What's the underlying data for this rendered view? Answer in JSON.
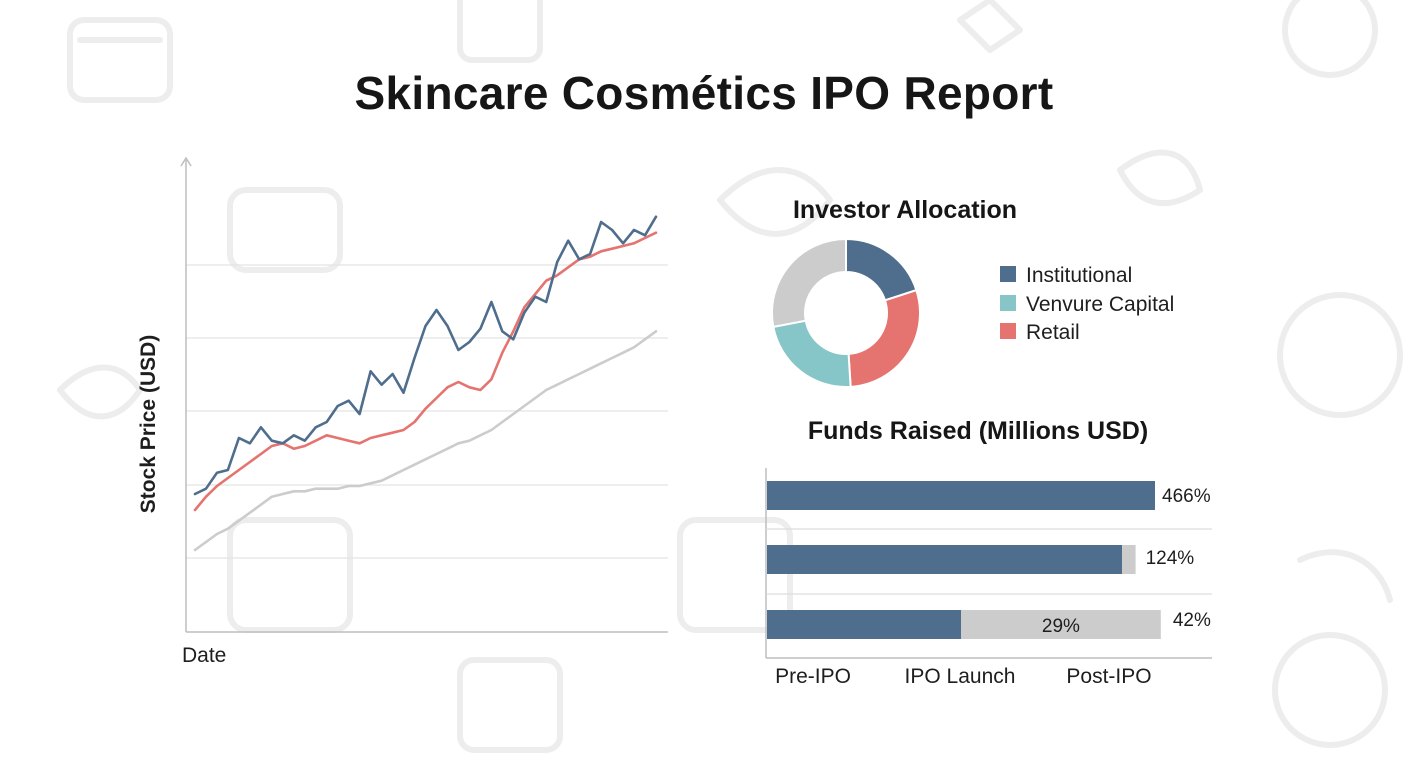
{
  "title": "Skincare Cosmétics IPO Report",
  "colors": {
    "blue": "#4f6d8c",
    "teal": "#86c5c8",
    "red": "#e5736f",
    "gray": "#cccccc",
    "axis": "#bdbdbd"
  },
  "chart_data": [
    {
      "type": "line",
      "title": "",
      "xlabel": "Date",
      "ylabel": "Stock Price (USD)",
      "grid": true,
      "series": [
        {
          "color": "blue",
          "values": [
            5.1,
            5.3,
            5.9,
            6.0,
            7.2,
            7.0,
            7.6,
            7.1,
            7.0,
            7.3,
            7.1,
            7.6,
            7.8,
            8.4,
            8.6,
            8.1,
            9.7,
            9.2,
            9.6,
            8.9,
            10.2,
            11.4,
            12.0,
            11.4,
            10.5,
            10.8,
            11.3,
            12.3,
            11.2,
            10.9,
            11.9,
            12.5,
            12.3,
            13.8,
            14.6,
            13.9,
            14.1,
            15.3,
            15.0,
            14.5,
            15.0,
            14.8,
            15.5
          ]
        },
        {
          "color": "red",
          "values": [
            4.5,
            5.0,
            5.4,
            5.7,
            6.0,
            6.3,
            6.6,
            6.9,
            7.0,
            6.8,
            6.9,
            7.1,
            7.3,
            7.2,
            7.1,
            7.0,
            7.2,
            7.3,
            7.4,
            7.5,
            7.8,
            8.3,
            8.7,
            9.1,
            9.3,
            9.1,
            9.0,
            9.4,
            10.4,
            11.2,
            12.1,
            12.6,
            13.1,
            13.3,
            13.6,
            13.9,
            14.0,
            14.2,
            14.3,
            14.4,
            14.5,
            14.7,
            14.9
          ]
        },
        {
          "color": "gray",
          "values": [
            3.0,
            3.3,
            3.6,
            3.8,
            4.1,
            4.4,
            4.7,
            5.0,
            5.1,
            5.2,
            5.2,
            5.3,
            5.3,
            5.3,
            5.4,
            5.4,
            5.5,
            5.6,
            5.8,
            6.0,
            6.2,
            6.4,
            6.6,
            6.8,
            7.0,
            7.1,
            7.3,
            7.5,
            7.8,
            8.1,
            8.4,
            8.7,
            9.0,
            9.2,
            9.4,
            9.6,
            9.8,
            10.0,
            10.2,
            10.4,
            10.6,
            10.9,
            11.2
          ]
        }
      ]
    },
    {
      "type": "pie",
      "donut": true,
      "title": "Investor Allocation",
      "legend": "right",
      "legend_entries": [
        {
          "label": "Institutional",
          "color": "blue"
        },
        {
          "label": "Venvure Capital",
          "color": "teal"
        },
        {
          "label": "Retail",
          "color": "red"
        }
      ],
      "slices": [
        {
          "color": "blue",
          "value": 20
        },
        {
          "color": "red",
          "value": 29
        },
        {
          "color": "teal",
          "value": 23
        },
        {
          "color": "gray",
          "value": 28
        }
      ]
    },
    {
      "type": "bar",
      "orientation": "horizontal",
      "stacked": true,
      "title": "Funds Raised (Millions USD)",
      "categories": [
        "Pre-IPO",
        "IPO Launch",
        "Post-IPO"
      ],
      "xlim": [
        0,
        100
      ],
      "series": [
        {
          "color": "blue",
          "values": [
            100,
            91.5,
            50
          ],
          "labels": [
            "466%",
            "",
            "29%"
          ]
        },
        {
          "color": "gray",
          "values": [
            0,
            3.5,
            51.5
          ],
          "labels": [
            "",
            "124%",
            "42%"
          ]
        }
      ]
    }
  ]
}
